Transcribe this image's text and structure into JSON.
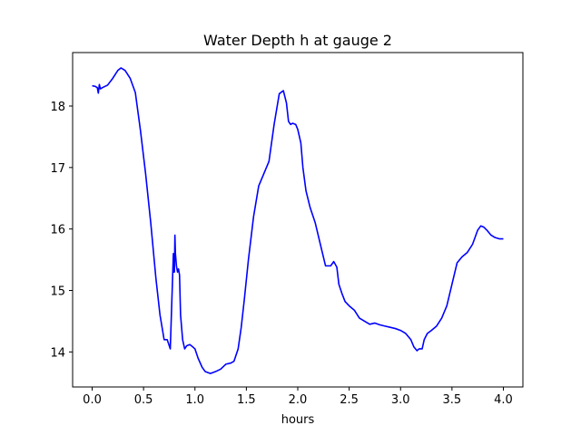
{
  "chart_data": {
    "type": "line",
    "title": "Water Depth h at gauge 2",
    "xlabel": "hours",
    "ylabel": "",
    "xlim": [
      -0.19,
      4.19
    ],
    "ylim": [
      13.43,
      18.87
    ],
    "xticks": [
      0.0,
      0.5,
      1.0,
      1.5,
      2.0,
      2.5,
      3.0,
      3.5,
      4.0
    ],
    "xtick_labels": [
      "0.0",
      "0.5",
      "1.0",
      "1.5",
      "2.0",
      "2.5",
      "3.0",
      "3.5",
      "4.0"
    ],
    "yticks": [
      14,
      15,
      16,
      17,
      18
    ],
    "ytick_labels": [
      "14",
      "15",
      "16",
      "17",
      "18"
    ],
    "grid": false,
    "legend": "none",
    "series": [
      {
        "name": "",
        "color": "#0000ff",
        "x": [
          0.0,
          0.03,
          0.05,
          0.06,
          0.07,
          0.08,
          0.1,
          0.15,
          0.2,
          0.25,
          0.28,
          0.32,
          0.37,
          0.42,
          0.47,
          0.52,
          0.57,
          0.62,
          0.66,
          0.7,
          0.73,
          0.76,
          0.79,
          0.795,
          0.8,
          0.805,
          0.81,
          0.82,
          0.83,
          0.84,
          0.85,
          0.86,
          0.87,
          0.88,
          0.9,
          0.92,
          0.95,
          0.98,
          1.0,
          1.03,
          1.07,
          1.1,
          1.15,
          1.2,
          1.25,
          1.3,
          1.35,
          1.38,
          1.42,
          1.45,
          1.48,
          1.52,
          1.57,
          1.62,
          1.67,
          1.72,
          1.77,
          1.82,
          1.86,
          1.89,
          1.91,
          1.93,
          1.95,
          1.98,
          2.0,
          2.03,
          2.05,
          2.08,
          2.12,
          2.17,
          2.22,
          2.27,
          2.32,
          2.35,
          2.38,
          2.4,
          2.43,
          2.46,
          2.5,
          2.55,
          2.6,
          2.65,
          2.7,
          2.75,
          2.8,
          2.85,
          2.9,
          2.95,
          3.0,
          3.05,
          3.1,
          3.13,
          3.16,
          3.18,
          3.21,
          3.23,
          3.26,
          3.3,
          3.35,
          3.4,
          3.45,
          3.5,
          3.55,
          3.6,
          3.65,
          3.7,
          3.75,
          3.78,
          3.81,
          3.84,
          3.88,
          3.92,
          3.96,
          4.0
        ],
        "y": [
          18.33,
          18.32,
          18.3,
          18.21,
          18.35,
          18.28,
          18.3,
          18.34,
          18.45,
          18.58,
          18.62,
          18.58,
          18.45,
          18.22,
          17.6,
          16.9,
          16.1,
          15.2,
          14.6,
          14.2,
          14.2,
          14.05,
          15.6,
          15.3,
          15.3,
          15.9,
          15.6,
          15.4,
          15.3,
          15.35,
          15.25,
          14.6,
          14.4,
          14.2,
          14.05,
          14.1,
          14.12,
          14.08,
          14.05,
          13.9,
          13.75,
          13.68,
          13.65,
          13.68,
          13.72,
          13.8,
          13.82,
          13.85,
          14.05,
          14.4,
          14.85,
          15.5,
          16.2,
          16.7,
          16.9,
          17.1,
          17.7,
          18.2,
          18.25,
          18.05,
          17.75,
          17.7,
          17.72,
          17.7,
          17.62,
          17.4,
          17.0,
          16.62,
          16.35,
          16.1,
          15.75,
          15.4,
          15.4,
          15.47,
          15.38,
          15.1,
          14.95,
          14.82,
          14.75,
          14.68,
          14.55,
          14.5,
          14.45,
          14.47,
          14.44,
          14.42,
          14.4,
          14.38,
          14.35,
          14.3,
          14.2,
          14.08,
          14.02,
          14.05,
          14.05,
          14.2,
          14.3,
          14.35,
          14.42,
          14.55,
          14.75,
          15.1,
          15.45,
          15.55,
          15.62,
          15.75,
          15.98,
          16.05,
          16.03,
          15.98,
          15.9,
          15.86,
          15.84,
          15.84
        ]
      }
    ]
  }
}
